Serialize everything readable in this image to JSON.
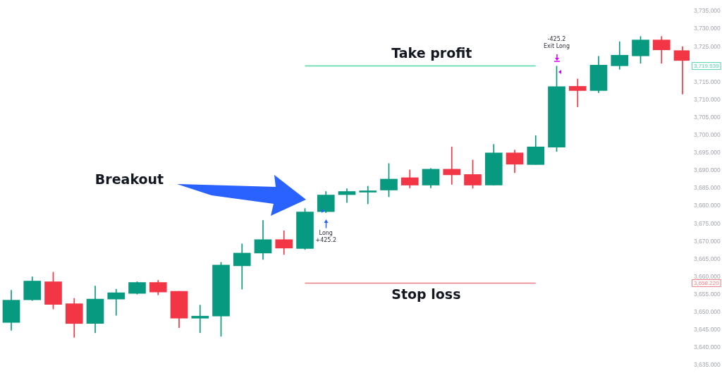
{
  "chart_data": {
    "type": "candlestick",
    "categories": [
      null,
      null,
      null,
      null,
      null,
      null,
      null,
      null,
      null,
      null,
      null,
      null,
      null,
      null,
      null,
      null,
      null,
      null,
      null,
      null,
      null,
      null,
      null,
      null,
      null,
      null,
      null,
      null,
      null,
      null,
      null,
      null,
      null
    ],
    "ohlc": [
      [
        3647.1,
        3656.2,
        3644.9,
        3653.4
      ],
      [
        3653.5,
        3660.0,
        3653.3,
        3658.8
      ],
      [
        3658.6,
        3661.3,
        3650.9,
        3652.2
      ],
      [
        3652.4,
        3653.9,
        3642.9,
        3646.8
      ],
      [
        3646.8,
        3657.4,
        3644.2,
        3653.7
      ],
      [
        3653.7,
        3656.5,
        3649.1,
        3655.5
      ],
      [
        3655.3,
        3658.6,
        3655.1,
        3658.4
      ],
      [
        3658.4,
        3659.0,
        3654.9,
        3655.7
      ],
      [
        3655.9,
        3655.9,
        3645.6,
        3648.3
      ],
      [
        3648.3,
        3652.0,
        3644.2,
        3648.9
      ],
      [
        3648.9,
        3664.1,
        3643.2,
        3663.3
      ],
      [
        3663.1,
        3669.3,
        3656.5,
        3666.7
      ],
      [
        3666.7,
        3675.9,
        3664.9,
        3670.5
      ],
      [
        3670.5,
        3673.0,
        3666.3,
        3668.1
      ],
      [
        3668.0,
        3679.3,
        3667.7,
        3678.3
      ],
      [
        3678.4,
        3684.1,
        3678.1,
        3683.1
      ],
      [
        3683.2,
        3684.9,
        3681.0,
        3684.1
      ],
      [
        3683.9,
        3685.6,
        3680.6,
        3684.3
      ],
      [
        3684.5,
        3692.0,
        3682.6,
        3687.6
      ],
      [
        3688.0,
        3690.2,
        3685.1,
        3685.9
      ],
      [
        3685.9,
        3690.6,
        3685.1,
        3690.4
      ],
      [
        3690.4,
        3696.7,
        3686.1,
        3688.8
      ],
      [
        3688.9,
        3693.0,
        3685.0,
        3685.9
      ],
      [
        3685.9,
        3697.4,
        3685.9,
        3695.0
      ],
      [
        3695.0,
        3695.8,
        3689.4,
        3691.8
      ],
      [
        3691.7,
        3699.9,
        3691.7,
        3696.7
      ],
      [
        3696.6,
        3719.5,
        3695.4,
        3713.7
      ],
      [
        3713.8,
        3715.9,
        3708.0,
        3712.6
      ],
      [
        3712.6,
        3722.3,
        3712.0,
        3719.8
      ],
      [
        3719.6,
        3726.4,
        3718.6,
        3722.6
      ],
      [
        3722.4,
        3727.9,
        3720.3,
        3726.9
      ],
      [
        3726.9,
        3727.9,
        3720.3,
        3724.1
      ],
      [
        3723.9,
        3725.0,
        3711.6,
        3721.1
      ]
    ],
    "colors": [
      "#089981",
      "#089981",
      "#f23645",
      "#f23645",
      "#089981",
      "#089981",
      "#089981",
      "#f23645",
      "#f23645",
      "#089981",
      "#089981",
      "#089981",
      "#089981",
      "#f23645",
      "#089981",
      "#089981",
      "#089981",
      "#089981",
      "#089981",
      "#f23645",
      "#089981",
      "#f23645",
      "#f23645",
      "#089981",
      "#f23645",
      "#089981",
      "#089981",
      "#f23645",
      "#089981",
      "#089981",
      "#089981",
      "#f23645",
      "#f23645"
    ],
    "series": [
      {
        "type": "line",
        "name": "Take profit",
        "color": "#4fd5a4",
        "values": [
          null,
          null,
          null,
          null,
          null,
          null,
          null,
          null,
          null,
          null,
          null,
          null,
          null,
          null,
          3719.539,
          3719.539,
          3719.539,
          3719.539,
          3719.539,
          3719.539,
          3719.539,
          3719.539,
          3719.539,
          3719.539,
          3719.539,
          3719.539,
          null,
          null,
          null,
          null,
          null,
          null,
          null
        ]
      },
      {
        "type": "line",
        "name": "Stop loss",
        "color": "#ec7d84",
        "values": [
          null,
          null,
          null,
          null,
          null,
          null,
          null,
          null,
          null,
          null,
          null,
          null,
          null,
          null,
          3658.22,
          3658.22,
          3658.22,
          3658.22,
          3658.22,
          3658.22,
          3658.22,
          3658.22,
          3658.22,
          3658.22,
          3658.22,
          3658.22,
          null,
          null,
          null,
          null,
          null,
          null,
          null
        ]
      }
    ],
    "ylim": [
      3635,
      3735
    ],
    "yticks": [
      {
        "value": 3635,
        "label": "3,635.000"
      },
      {
        "value": 3640,
        "label": "3,640.000"
      },
      {
        "value": 3645,
        "label": "3,645.000"
      },
      {
        "value": 3650,
        "label": "3,650.000"
      },
      {
        "value": 3655,
        "label": "3,655.000"
      },
      {
        "value": 3660,
        "label": "3,660.000"
      },
      {
        "value": 3665,
        "label": "3,665.000"
      },
      {
        "value": 3670,
        "label": "3,670.000"
      },
      {
        "value": 3675,
        "label": "3,675.000"
      },
      {
        "value": 3680,
        "label": "3,680.000"
      },
      {
        "value": 3685,
        "label": "3,685.000"
      },
      {
        "value": 3690,
        "label": "3,690.000"
      },
      {
        "value": 3695,
        "label": "3,695.000"
      },
      {
        "value": 3700,
        "label": "3,700.000"
      },
      {
        "value": 3705,
        "label": "3,705.000"
      },
      {
        "value": 3710,
        "label": "3,710.000"
      },
      {
        "value": 3715,
        "label": "3,715.000"
      },
      {
        "value": 3725,
        "label": "3,725.000"
      },
      {
        "value": 3730,
        "label": "3,730.000"
      },
      {
        "value": 3735,
        "label": "3,735.000"
      }
    ],
    "tick_labels": "y",
    "annotations": [
      "Breakout",
      "Long",
      "+425.2",
      "-425.2",
      "Exit Long",
      "3,719.539",
      "3,658.220"
    ]
  }
}
